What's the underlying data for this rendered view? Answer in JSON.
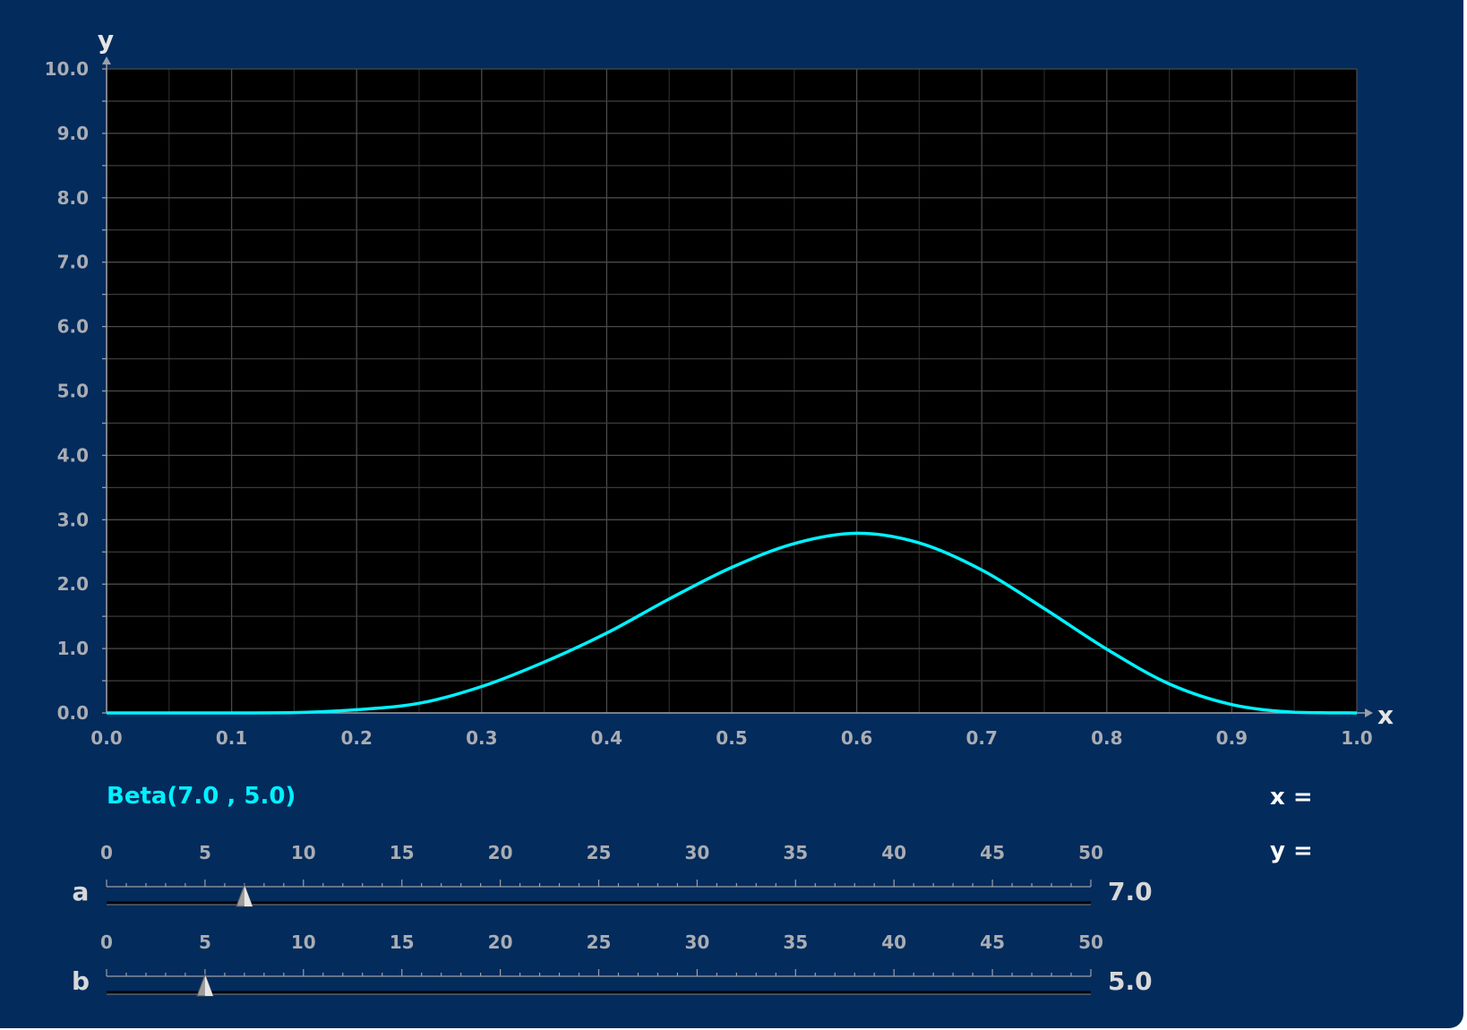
{
  "chart_data": {
    "type": "line",
    "title": "",
    "xlabel": "x",
    "ylabel": "y",
    "xlim": [
      0.0,
      1.0
    ],
    "ylim": [
      0.0,
      10.0
    ],
    "x_ticks": [
      "0.0",
      "0.1",
      "0.2",
      "0.3",
      "0.4",
      "0.5",
      "0.6",
      "0.7",
      "0.8",
      "0.9",
      "1.0"
    ],
    "y_ticks": [
      "0.0",
      "1.0",
      "2.0",
      "3.0",
      "4.0",
      "5.0",
      "6.0",
      "7.0",
      "8.0",
      "9.0",
      "10.0"
    ],
    "grid": true,
    "series": [
      {
        "name": "Beta(7.0 , 5.0)",
        "color": "#00f2ff",
        "x": [
          0.0,
          0.05,
          0.1,
          0.15,
          0.2,
          0.25,
          0.3,
          0.35,
          0.4,
          0.45,
          0.5,
          0.55,
          0.6,
          0.65,
          0.7,
          0.75,
          0.8,
          0.85,
          0.9,
          0.95,
          1.0
        ],
        "y": [
          0.0,
          0.0,
          0.0,
          0.005,
          0.05,
          0.15,
          0.41,
          0.79,
          1.24,
          1.77,
          2.26,
          2.63,
          2.79,
          2.64,
          2.22,
          1.62,
          0.99,
          0.45,
          0.13,
          0.01,
          0.0
        ]
      }
    ]
  },
  "readouts": {
    "x_label": "x =",
    "y_label": "y ="
  },
  "sliders": [
    {
      "name": "a",
      "min": 0,
      "max": 50,
      "value": 7.0,
      "value_text": "7.0",
      "tick_labels": [
        "0",
        "5",
        "10",
        "15",
        "20",
        "25",
        "30",
        "35",
        "40",
        "45",
        "50"
      ]
    },
    {
      "name": "b",
      "min": 0,
      "max": 50,
      "value": 5.0,
      "value_text": "5.0",
      "tick_labels": [
        "0",
        "5",
        "10",
        "15",
        "20",
        "25",
        "30",
        "35",
        "40",
        "45",
        "50"
      ]
    }
  ],
  "colors": {
    "background": "#032b5c",
    "plot_area": "#000000",
    "grid": "#3a3a3a",
    "curve": "#00f2ff",
    "tick_text": "#a9adb3"
  }
}
